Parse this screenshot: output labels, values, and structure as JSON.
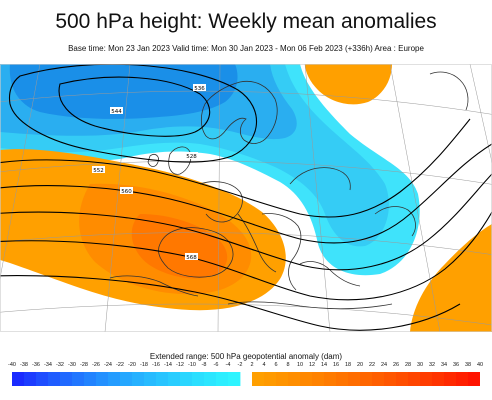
{
  "title": "500 hPa height: Weekly mean anomalies",
  "subtitle": "Base time: Mon 23 Jan 2023 Valid time: Mon 30 Jan 2023 - Mon 06 Feb 2023 (+336h) Area : Europe",
  "legend": {
    "title": "Extended range: 500 hPa geopotential anomaly (dam)",
    "ticks": [
      "-40",
      "-38",
      "-36",
      "-34",
      "-32",
      "-30",
      "-28",
      "-26",
      "-24",
      "-22",
      "-20",
      "-18",
      "-16",
      "-14",
      "-12",
      "-10",
      "-8",
      "-6",
      "-4",
      "-2",
      "2",
      "4",
      "6",
      "8",
      "10",
      "12",
      "14",
      "16",
      "18",
      "20",
      "22",
      "24",
      "26",
      "28",
      "30",
      "32",
      "34",
      "36",
      "38",
      "40"
    ],
    "negative_colors": [
      "#1a2bff",
      "#1c3cff",
      "#1e4dff",
      "#1f5cff",
      "#2069ff",
      "#2176ff",
      "#2283ff",
      "#2390ff",
      "#249cff",
      "#25a7ff",
      "#26b1ff",
      "#27bbff",
      "#28c4ff",
      "#29cdff",
      "#2ad6ff",
      "#2bdfff",
      "#2ce6ff",
      "#2deeff",
      "#2ef4ff"
    ],
    "positive_colors": [
      "#ff9f00",
      "#ff9a00",
      "#ff9400",
      "#ff8e00",
      "#ff8800",
      "#ff8200",
      "#ff7b00",
      "#ff7400",
      "#ff6d00",
      "#ff6600",
      "#ff5e00",
      "#ff5600",
      "#ff4e00",
      "#ff4500",
      "#ff3c00",
      "#ff3300",
      "#ff2900",
      "#ff1f00",
      "#ff1400"
    ]
  },
  "map": {
    "region": "Europe",
    "colors": {
      "negative_dark": "#1a8fe8",
      "negative_mid": "#2aaef0",
      "negative_light": "#35ccf5",
      "negative_pale": "#3fe3fb",
      "positive_light": "#ffa000",
      "positive_mid": "#ff8c00",
      "positive_dark": "#ff7800",
      "coast": "#333333",
      "contour": "#000000",
      "grid": "#9a9a9a"
    },
    "contour_labels": [
      "528",
      "536",
      "544",
      "552",
      "560",
      "568"
    ]
  }
}
